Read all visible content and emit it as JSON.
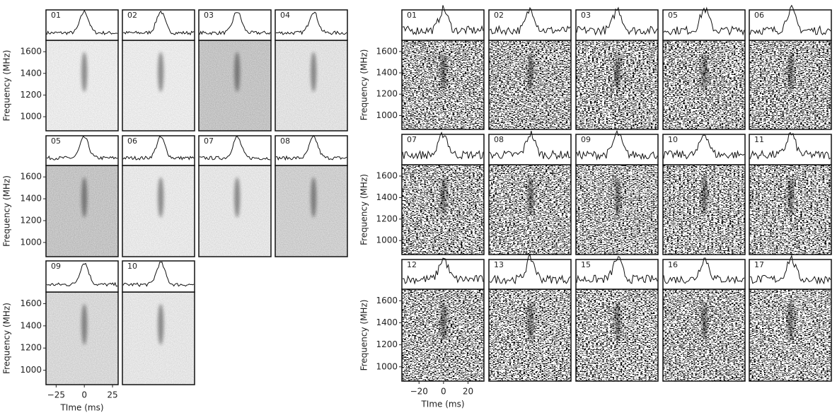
{
  "left": {
    "panels": [
      [
        "01",
        "02",
        "03",
        "04"
      ],
      [
        "05",
        "06",
        "07",
        "08"
      ],
      [
        "09",
        "10"
      ]
    ],
    "y_label": "Frequency (MHz)",
    "x_label": "TIme (ms)",
    "ylim": [
      870,
      1705
    ],
    "yticks": [
      1000,
      1200,
      1400,
      1600
    ],
    "xlim": [
      -34,
      30
    ],
    "xticks": [
      {
        "value": -25,
        "label": "−25"
      },
      0,
      25
    ]
  },
  "right": {
    "panels": [
      [
        "01",
        "02",
        "03",
        "05",
        "06"
      ],
      [
        "07",
        "08",
        "09",
        "10",
        "11"
      ],
      [
        "12",
        "13",
        "15",
        "16",
        "17"
      ]
    ],
    "y_label": "Frequency (MHz)",
    "x_label": "TIme (ms)",
    "ylim": [
      870,
      1705
    ],
    "yticks": [
      1000,
      1200,
      1400,
      1600
    ],
    "xlim": [
      -34,
      33
    ],
    "xticks": [
      {
        "value": -20,
        "label": "−20"
      },
      0,
      20
    ]
  }
}
